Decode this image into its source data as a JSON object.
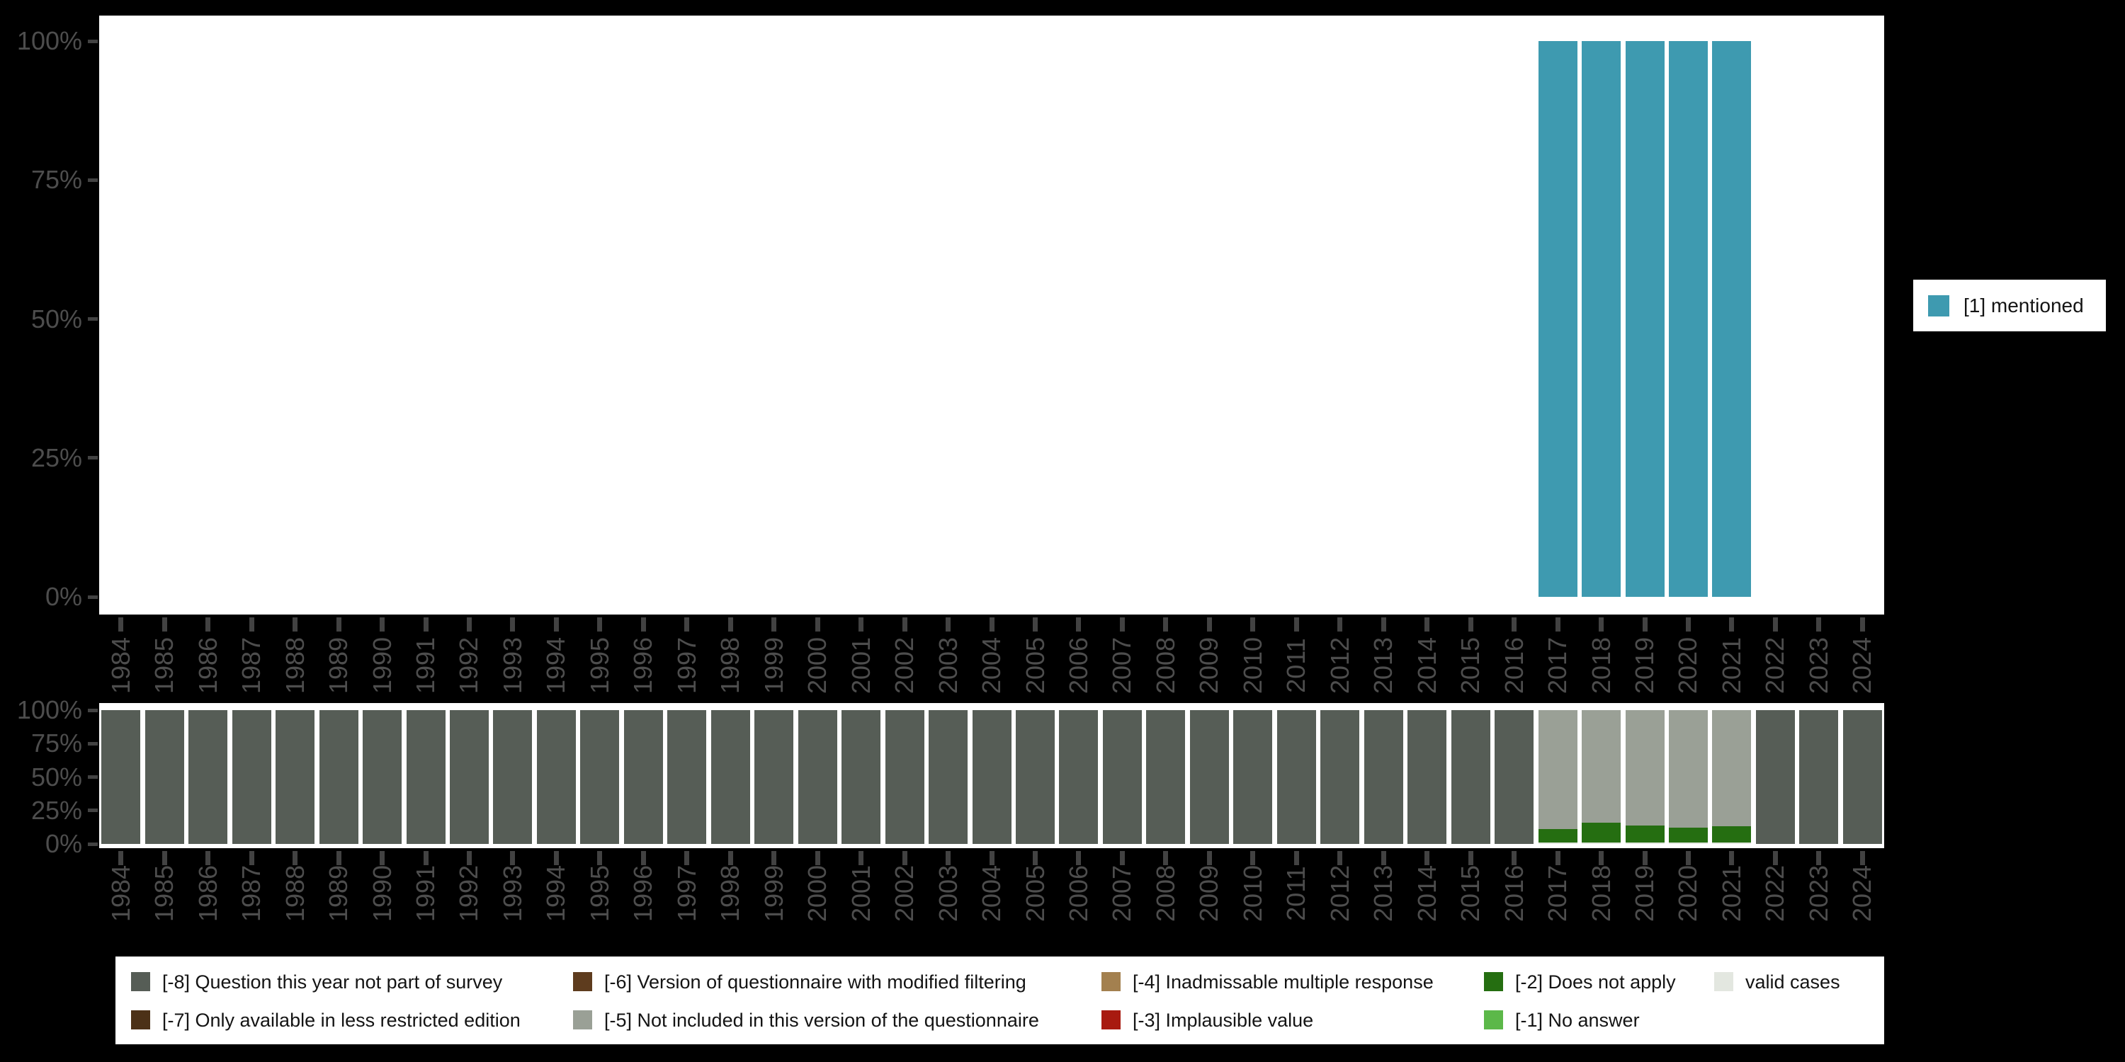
{
  "page": {
    "background": "#000000",
    "plot_background": "#ffffff"
  },
  "axes": {
    "ytick_labels": [
      "100%",
      "75%",
      "50%",
      "25%",
      "0%"
    ],
    "years": [
      "1984",
      "1985",
      "1986",
      "1987",
      "1988",
      "1989",
      "1990",
      "1991",
      "1992",
      "1993",
      "1994",
      "1995",
      "1996",
      "1997",
      "1998",
      "1999",
      "2000",
      "2001",
      "2002",
      "2003",
      "2004",
      "2005",
      "2006",
      "2007",
      "2008",
      "2009",
      "2010",
      "2011",
      "2012",
      "2013",
      "2014",
      "2015",
      "2016",
      "2017",
      "2018",
      "2019",
      "2020",
      "2021",
      "2022",
      "2023",
      "2024"
    ]
  },
  "legend_top": {
    "label": "[1] mentioned",
    "color": "#3e9ab0"
  },
  "legend_bottom": {
    "items": [
      {
        "row": 0,
        "col": 0,
        "label": "[-8] Question this year not part of survey",
        "color": "#565d56"
      },
      {
        "row": 0,
        "col": 1,
        "label": "[-6] Version of questionnaire with modified filtering",
        "color": "#5e3c1e"
      },
      {
        "row": 0,
        "col": 2,
        "label": "[-4] Inadmissable multiple response",
        "color": "#a3804f"
      },
      {
        "row": 0,
        "col": 3,
        "label": "[-2] Does not apply",
        "color": "#256e11"
      },
      {
        "row": 0,
        "col": 4,
        "label": "valid cases",
        "color": "#e3e7e0"
      },
      {
        "row": 1,
        "col": 0,
        "label": "[-7] Only available in less restricted edition",
        "color": "#4c3117"
      },
      {
        "row": 1,
        "col": 1,
        "label": "[-5] Not included in this version of the questionnaire",
        "color": "#9aa096"
      },
      {
        "row": 1,
        "col": 2,
        "label": "[-3] Implausible value",
        "color": "#a81a10"
      },
      {
        "row": 1,
        "col": 3,
        "label": "[-1] No answer",
        "color": "#5cb849"
      }
    ]
  },
  "chart_data": [
    {
      "type": "bar",
      "stacked": false,
      "title": "",
      "xlabel": "",
      "ylabel": "",
      "ylim": [
        0,
        100
      ],
      "ytick_labels": [
        "0%",
        "25%",
        "50%",
        "75%",
        "100%"
      ],
      "categories": [
        "1984",
        "1985",
        "1986",
        "1987",
        "1988",
        "1989",
        "1990",
        "1991",
        "1992",
        "1993",
        "1994",
        "1995",
        "1996",
        "1997",
        "1998",
        "1999",
        "2000",
        "2001",
        "2002",
        "2003",
        "2004",
        "2005",
        "2006",
        "2007",
        "2008",
        "2009",
        "2010",
        "2011",
        "2012",
        "2013",
        "2014",
        "2015",
        "2016",
        "2017",
        "2018",
        "2019",
        "2020",
        "2021",
        "2022",
        "2023",
        "2024"
      ],
      "legend_position": "right",
      "series": [
        {
          "name": "[1] mentioned",
          "color": "#3e9ab0",
          "values": [
            null,
            null,
            null,
            null,
            null,
            null,
            null,
            null,
            null,
            null,
            null,
            null,
            null,
            null,
            null,
            null,
            null,
            null,
            null,
            null,
            null,
            null,
            null,
            null,
            null,
            null,
            null,
            null,
            null,
            null,
            null,
            null,
            null,
            100,
            100,
            100,
            100,
            100,
            null,
            null,
            null
          ]
        }
      ]
    },
    {
      "type": "bar",
      "stacked": true,
      "title": "",
      "xlabel": "",
      "ylabel": "",
      "ylim": [
        0,
        100
      ],
      "ytick_labels": [
        "0%",
        "25%",
        "50%",
        "75%",
        "100%"
      ],
      "categories": [
        "1984",
        "1985",
        "1986",
        "1987",
        "1988",
        "1989",
        "1990",
        "1991",
        "1992",
        "1993",
        "1994",
        "1995",
        "1996",
        "1997",
        "1998",
        "1999",
        "2000",
        "2001",
        "2002",
        "2003",
        "2004",
        "2005",
        "2006",
        "2007",
        "2008",
        "2009",
        "2010",
        "2011",
        "2012",
        "2013",
        "2014",
        "2015",
        "2016",
        "2017",
        "2018",
        "2019",
        "2020",
        "2021",
        "2022",
        "2023",
        "2024"
      ],
      "legend_position": "bottom",
      "series": [
        {
          "name": "[-8] Question this year not part of survey",
          "color": "#565d56",
          "values": [
            100,
            100,
            100,
            100,
            100,
            100,
            100,
            100,
            100,
            100,
            100,
            100,
            100,
            100,
            100,
            100,
            100,
            100,
            100,
            100,
            100,
            100,
            100,
            100,
            100,
            100,
            100,
            100,
            100,
            100,
            100,
            100,
            100,
            0,
            0,
            0,
            0,
            0,
            100,
            100,
            100
          ]
        },
        {
          "name": "valid cases",
          "color": "#e3e7e0",
          "values": [
            0,
            0,
            0,
            0,
            0,
            0,
            0,
            0,
            0,
            0,
            0,
            0,
            0,
            0,
            0,
            0,
            0,
            0,
            0,
            0,
            0,
            0,
            0,
            0,
            0,
            0,
            0,
            0,
            0,
            0,
            0,
            0,
            0,
            1,
            1,
            1,
            1,
            1,
            0,
            0,
            0
          ]
        },
        {
          "name": "[-2] Does not apply",
          "color": "#256e11",
          "values": [
            0,
            0,
            0,
            0,
            0,
            0,
            0,
            0,
            0,
            0,
            0,
            0,
            0,
            0,
            0,
            0,
            0,
            0,
            0,
            0,
            0,
            0,
            0,
            0,
            0,
            0,
            0,
            0,
            0,
            0,
            0,
            0,
            0,
            10,
            15,
            13,
            11,
            12,
            0,
            0,
            0
          ]
        },
        {
          "name": "[-5] Not included in this version of the questionnaire",
          "color": "#9aa096",
          "values": [
            0,
            0,
            0,
            0,
            0,
            0,
            0,
            0,
            0,
            0,
            0,
            0,
            0,
            0,
            0,
            0,
            0,
            0,
            0,
            0,
            0,
            0,
            0,
            0,
            0,
            0,
            0,
            0,
            0,
            0,
            0,
            0,
            0,
            89,
            84,
            86,
            88,
            87,
            0,
            0,
            0
          ]
        }
      ]
    }
  ]
}
